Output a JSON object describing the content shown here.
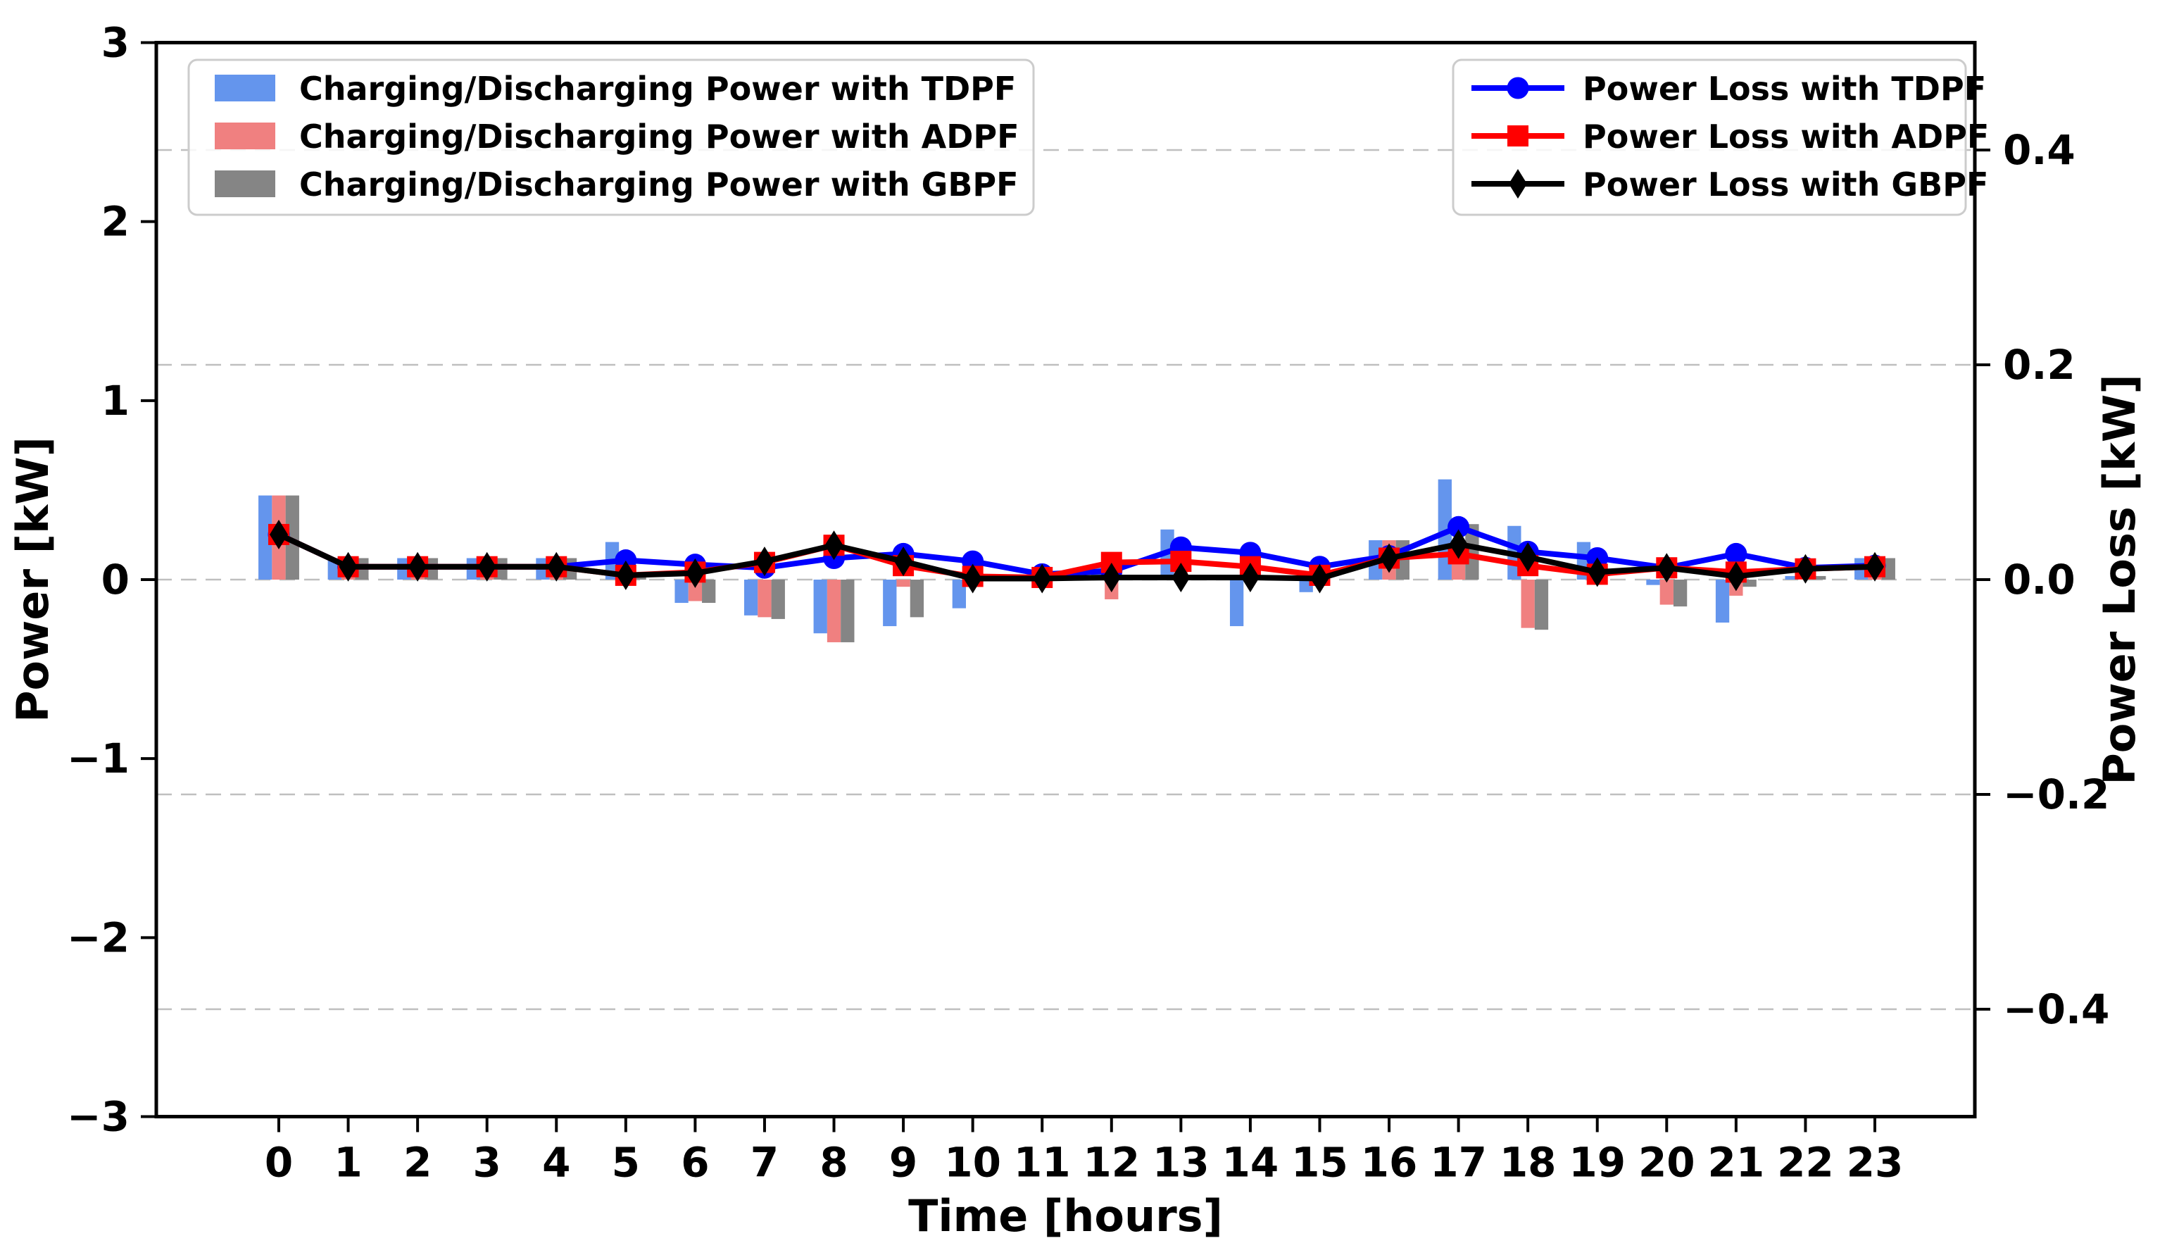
{
  "chart_data": {
    "type": "bar+line",
    "title": "",
    "xlabel": "Time [hours]",
    "ylabel_left": "Power [kW]",
    "ylabel_right": "Power Loss [kW]",
    "categories": [
      "0",
      "1",
      "2",
      "3",
      "4",
      "5",
      "6",
      "7",
      "8",
      "9",
      "10",
      "11",
      "12",
      "13",
      "14",
      "15",
      "16",
      "17",
      "18",
      "19",
      "20",
      "21",
      "22",
      "23"
    ],
    "x_values": [
      0,
      1,
      2,
      3,
      4,
      5,
      6,
      7,
      8,
      9,
      10,
      11,
      12,
      13,
      14,
      15,
      16,
      17,
      18,
      19,
      20,
      21,
      22,
      23
    ],
    "ylim_left": [
      -3,
      3
    ],
    "ylim_right": [
      -0.5,
      0.5
    ],
    "yticks_left": {
      "values": [
        3,
        2,
        1,
        0,
        -1,
        -2,
        -3
      ],
      "labels": [
        "3",
        "2",
        "1",
        "0",
        "−1",
        "−2",
        "−3"
      ]
    },
    "yticks_right": {
      "values": [
        0.4,
        0.2,
        0.0,
        -0.2,
        -0.4
      ],
      "labels": [
        "0.4",
        "0.2",
        "0.0",
        "−0.2",
        "−0.4"
      ]
    },
    "grid": {
      "on": true,
      "axis": "right-y",
      "style": "dashed",
      "color": "#bfbfbf"
    },
    "bar_series": [
      {
        "name": "Charging/Discharging Power with TDPF",
        "color": "#6495ed",
        "values": [
          0.47,
          0.12,
          0.12,
          0.12,
          0.12,
          0.21,
          -0.13,
          -0.2,
          -0.3,
          -0.26,
          -0.16,
          0.0,
          0.08,
          0.28,
          -0.26,
          -0.07,
          0.22,
          0.56,
          0.3,
          0.21,
          -0.03,
          -0.24,
          0.02,
          0.12
        ]
      },
      {
        "name": "Charging/Discharging Power with ADPF",
        "color": "#f08080",
        "values": [
          0.47,
          0.1,
          0.1,
          0.1,
          0.1,
          0.03,
          -0.12,
          -0.21,
          -0.35,
          -0.04,
          0.0,
          0.0,
          -0.11,
          0.13,
          0.0,
          0.0,
          0.22,
          0.14,
          -0.27,
          0.0,
          -0.14,
          -0.09,
          0.0,
          0.1
        ]
      },
      {
        "name": "Charging/Discharging Power with GBPF",
        "color": "#858585",
        "values": [
          0.47,
          0.12,
          0.12,
          0.12,
          0.12,
          0.04,
          -0.13,
          -0.22,
          -0.35,
          -0.21,
          0.0,
          0.0,
          0.0,
          0.0,
          0.0,
          0.0,
          0.22,
          0.31,
          -0.28,
          0.0,
          -0.15,
          -0.04,
          0.02,
          0.12
        ]
      }
    ],
    "line_series": [
      {
        "name": "Power Loss with TDPF",
        "color": "#0000ff",
        "marker": "circle",
        "values": [
          0.042,
          0.012,
          0.012,
          0.012,
          0.012,
          0.018,
          0.014,
          0.011,
          0.02,
          0.024,
          0.017,
          0.005,
          0.008,
          0.03,
          0.025,
          0.012,
          0.022,
          0.049,
          0.026,
          0.02,
          0.011,
          0.024,
          0.011,
          0.013
        ]
      },
      {
        "name": "Power Loss with ADPF",
        "color": "#ff0000",
        "marker": "square",
        "values": [
          0.042,
          0.012,
          0.012,
          0.012,
          0.012,
          0.004,
          0.007,
          0.016,
          0.032,
          0.013,
          0.003,
          0.002,
          0.016,
          0.017,
          0.012,
          0.004,
          0.02,
          0.024,
          0.013,
          0.005,
          0.011,
          0.007,
          0.01,
          0.012
        ]
      },
      {
        "name": "Power Loss with GBPF",
        "color": "#000000",
        "marker": "diamond",
        "values": [
          0.042,
          0.012,
          0.012,
          0.012,
          0.012,
          0.004,
          0.006,
          0.017,
          0.032,
          0.017,
          0.001,
          0.001,
          0.002,
          0.002,
          0.002,
          0.001,
          0.02,
          0.033,
          0.021,
          0.007,
          0.011,
          0.003,
          0.01,
          0.012
        ]
      }
    ],
    "legend_left": {
      "position": "upper left",
      "items": [
        "Charging/Discharging Power with TDPF",
        "Charging/Discharging Power with ADPF",
        "Charging/Discharging Power with GBPF"
      ]
    },
    "legend_right": {
      "position": "upper right",
      "items": [
        "Power Loss with TDPF",
        "Power Loss with ADPF",
        "Power Loss with GBPF"
      ]
    },
    "colors": {
      "background": "#ffffff",
      "frame": "#000000",
      "grid": "#bfbfbf"
    }
  }
}
